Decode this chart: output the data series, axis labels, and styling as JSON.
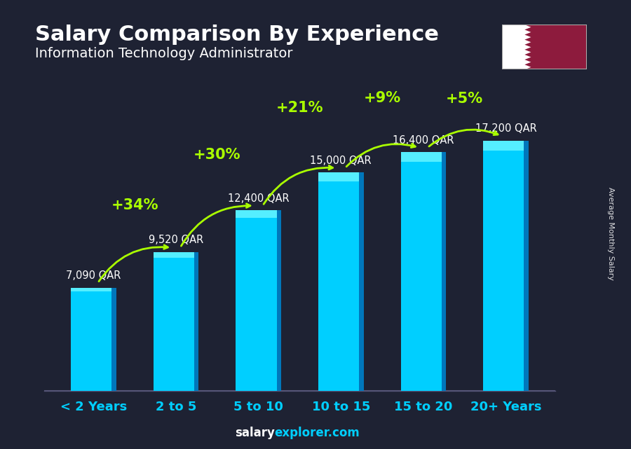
{
  "title": "Salary Comparison By Experience",
  "subtitle": "Information Technology Administrator",
  "categories": [
    "< 2 Years",
    "2 to 5",
    "5 to 10",
    "10 to 15",
    "15 to 20",
    "20+ Years"
  ],
  "values": [
    7090,
    9520,
    12400,
    15000,
    16400,
    17200
  ],
  "value_labels": [
    "7,090 QAR",
    "9,520 QAR",
    "12,400 QAR",
    "15,000 QAR",
    "16,400 QAR",
    "17,200 QAR"
  ],
  "pct_labels": [
    "+34%",
    "+30%",
    "+21%",
    "+9%",
    "+5%"
  ],
  "bar_color_main": "#00cfff",
  "bar_color_dark": "#0077bb",
  "bar_color_light": "#55eeff",
  "bg_color": "#1e2233",
  "title_color": "#ffffff",
  "subtitle_color": "#ffffff",
  "value_label_color": "#ffffff",
  "pct_color": "#aaff00",
  "arrow_color": "#aaff00",
  "xlabel_color": "#00cfff",
  "footer_salary_color": "#ffffff",
  "footer_explorer_color": "#00cfff",
  "ylabel_text": "Average Monthly Salary",
  "footer_left": "salary",
  "footer_right": "explorer.com",
  "ylim_max": 21000,
  "sidebar_text": "Average Monthly Salary",
  "flag_maroon": "#8d1b3d",
  "flag_white": "#ffffff"
}
